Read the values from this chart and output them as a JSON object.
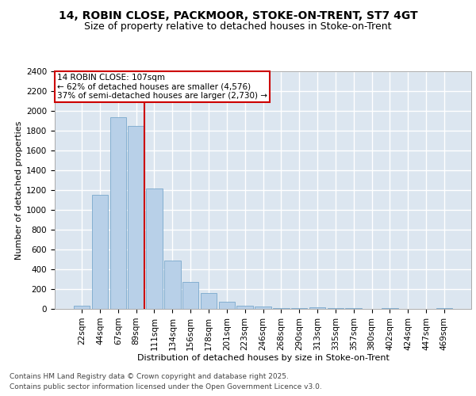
{
  "title1": "14, ROBIN CLOSE, PACKMOOR, STOKE-ON-TRENT, ST7 4GT",
  "title2": "Size of property relative to detached houses in Stoke-on-Trent",
  "xlabel": "Distribution of detached houses by size in Stoke-on-Trent",
  "ylabel": "Number of detached properties",
  "categories": [
    "22sqm",
    "44sqm",
    "67sqm",
    "89sqm",
    "111sqm",
    "134sqm",
    "156sqm",
    "178sqm",
    "201sqm",
    "223sqm",
    "246sqm",
    "268sqm",
    "290sqm",
    "313sqm",
    "335sqm",
    "357sqm",
    "380sqm",
    "402sqm",
    "424sqm",
    "447sqm",
    "469sqm"
  ],
  "values": [
    30,
    1155,
    1940,
    1850,
    1220,
    490,
    270,
    160,
    70,
    35,
    25,
    5,
    5,
    15,
    5,
    5,
    0,
    5,
    0,
    0,
    5
  ],
  "bar_color": "#b8d0e8",
  "bar_edge_color": "#7aa8cc",
  "vline_color": "#cc0000",
  "vline_pos": 3.45,
  "annotation_text": "14 ROBIN CLOSE: 107sqm\n← 62% of detached houses are smaller (4,576)\n37% of semi-detached houses are larger (2,730) →",
  "annotation_box_color": "#ffffff",
  "annotation_box_edge": "#cc0000",
  "ylim": [
    0,
    2400
  ],
  "yticks": [
    0,
    200,
    400,
    600,
    800,
    1000,
    1200,
    1400,
    1600,
    1800,
    2000,
    2200,
    2400
  ],
  "background_color": "#dce6f0",
  "grid_color": "#ffffff",
  "fig_background": "#ffffff",
  "footer1": "Contains HM Land Registry data © Crown copyright and database right 2025.",
  "footer2": "Contains public sector information licensed under the Open Government Licence v3.0.",
  "title1_fontsize": 10,
  "title2_fontsize": 9,
  "axis_label_fontsize": 8,
  "tick_fontsize": 7.5,
  "annotation_fontsize": 7.5,
  "footer_fontsize": 6.5,
  "ylabel_fontsize": 8
}
